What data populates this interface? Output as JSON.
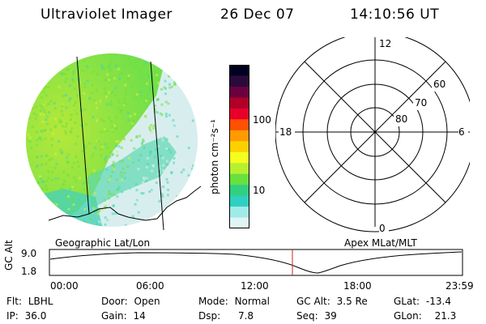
{
  "header": {
    "instrument": "Ultraviolet Imager",
    "date": "26 Dec 07",
    "time": "14:10:56 UT"
  },
  "colorbar": {
    "unit_label": "photon cm⁻²s⁻¹",
    "ticks": [
      "100",
      "10"
    ],
    "colors": [
      "#000020",
      "#2a0a3a",
      "#6a0040",
      "#b00028",
      "#e8002a",
      "#ff5000",
      "#ff9a00",
      "#ffd000",
      "#f4ff20",
      "#b8f030",
      "#68e040",
      "#30d080",
      "#30d0c0",
      "#a0eae8",
      "#e0f4f4"
    ]
  },
  "left_panel": {
    "caption": "Geographic Lat/Lon",
    "palette": {
      "green": "#6ee040",
      "teal": "#40d8b0",
      "pale": "#d8eeee",
      "yellow": "#d8f040"
    }
  },
  "right_panel": {
    "caption": "Apex MLat/MLT",
    "mlt_labels": {
      "top": "12",
      "left": "18",
      "right": "6",
      "bottom": "0"
    },
    "lat_labels": [
      "60",
      "70",
      "80"
    ]
  },
  "altitude_plot": {
    "ylabel": "GC Alt",
    "yticks": [
      "9.0",
      "1.8"
    ],
    "xticks": [
      "00:00",
      "06:00",
      "12:00",
      "18:00",
      "23:59"
    ],
    "marker_color": "#d02020"
  },
  "status": {
    "flt": {
      "label": "Flt:",
      "value": "LBHL"
    },
    "ip": {
      "label": "IP:",
      "value": "36.0"
    },
    "door": {
      "label": "Door:",
      "value": "Open"
    },
    "gain": {
      "label": "Gain:",
      "value": "14"
    },
    "mode": {
      "label": "Mode:",
      "value": "Normal"
    },
    "dsp": {
      "label": "Dsp:",
      "value": "7.8"
    },
    "gcalt": {
      "label": "GC Alt:",
      "value": "3.5 Re"
    },
    "seq": {
      "label": "Seq:",
      "value": "39"
    },
    "glat": {
      "label": "GLat:",
      "value": "-13.4"
    },
    "glon": {
      "label": "GLon:",
      "value": "21.3"
    }
  }
}
